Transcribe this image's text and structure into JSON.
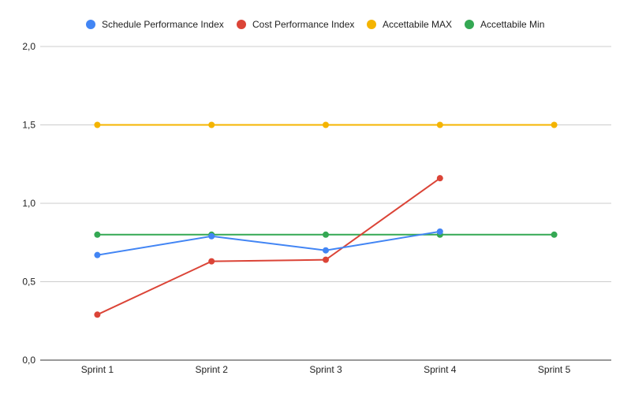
{
  "chart_data": {
    "type": "line",
    "categories": [
      "Sprint 1",
      "Sprint 2",
      "Sprint 3",
      "Sprint 4",
      "Sprint 5"
    ],
    "ylim": [
      0,
      2
    ],
    "yticks": [
      "0,0",
      "0,5",
      "1,0",
      "1,5",
      "2,0"
    ],
    "ytick_values": [
      0,
      0.5,
      1.0,
      1.5,
      2.0
    ],
    "grid": true,
    "legend_position": "top-center",
    "series": [
      {
        "name": "Schedule Performance Index",
        "color": "#4285f4",
        "values": [
          0.67,
          0.79,
          0.7,
          0.82,
          null
        ]
      },
      {
        "name": "Cost Performance Index",
        "color": "#db4437",
        "values": [
          0.29,
          0.63,
          0.64,
          1.16,
          null
        ]
      },
      {
        "name": "Accettabile MAX",
        "color": "#f4b400",
        "values": [
          1.5,
          1.5,
          1.5,
          1.5,
          1.5
        ]
      },
      {
        "name": "Accettabile Min",
        "color": "#34a853",
        "values": [
          0.8,
          0.8,
          0.8,
          0.8,
          0.8
        ]
      }
    ]
  }
}
